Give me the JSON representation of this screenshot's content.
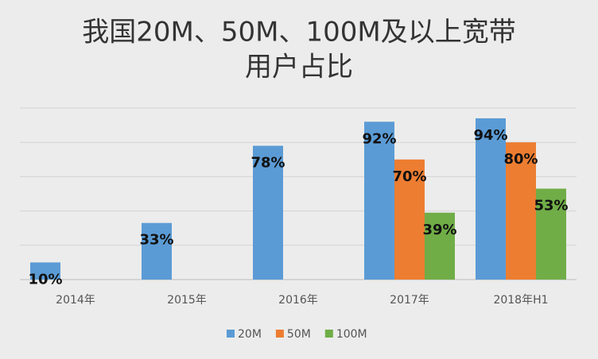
{
  "chart_data": {
    "type": "bar",
    "title": [
      "我国20M、50M、100M及以上宽带",
      "用户占比"
    ],
    "categories": [
      "2014年",
      "2015年",
      "2016年",
      "2017年",
      "2018年H1"
    ],
    "series": [
      {
        "name": "20M",
        "color": "#5b9bd5",
        "values": [
          10,
          33,
          78,
          92,
          94
        ],
        "value_labels": [
          "10%",
          "33%",
          "78%",
          "92%",
          "94%"
        ]
      },
      {
        "name": "50M",
        "color": "#ed7d31",
        "values": [
          null,
          null,
          null,
          70,
          80
        ],
        "value_labels": [
          null,
          null,
          null,
          "70%",
          "80%"
        ]
      },
      {
        "name": "100M",
        "color": "#70ad47",
        "values": [
          null,
          null,
          null,
          39,
          53
        ],
        "value_labels": [
          null,
          null,
          null,
          "39%",
          "53%"
        ]
      }
    ],
    "ylim": [
      0,
      100
    ],
    "yticks": [
      0,
      20,
      40,
      60,
      80,
      100
    ],
    "grid": true
  }
}
